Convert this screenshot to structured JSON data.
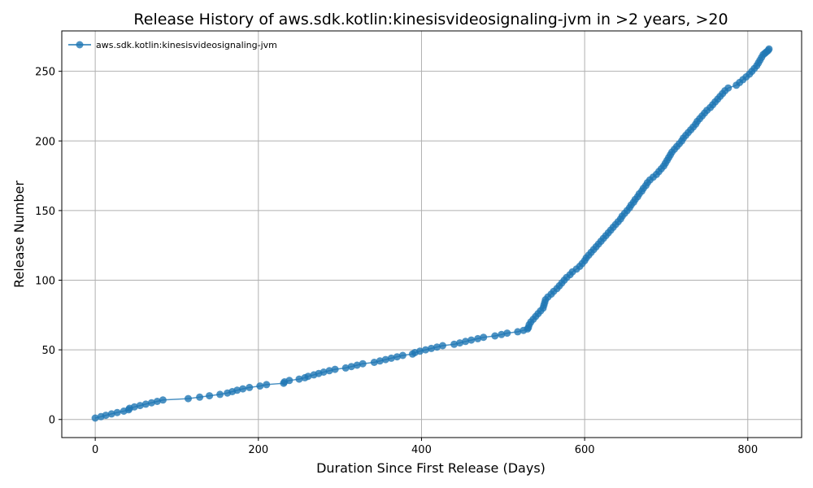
{
  "chart_data": {
    "type": "line",
    "title": "Release History of aws.sdk.kotlin:kinesisvideosignaling-jvm in >2 years, >20",
    "xlabel": "Duration Since First Release (Days)",
    "ylabel": "Release Number",
    "xlim": [
      -41,
      866
    ],
    "ylim": [
      -13,
      279
    ],
    "xticks": [
      0,
      200,
      400,
      600,
      800
    ],
    "yticks": [
      0,
      50,
      100,
      150,
      200,
      250
    ],
    "grid": true,
    "legend_position": "top-left",
    "series": [
      {
        "name": "aws.sdk.kotlin:kinesisvideosignaling-jvm",
        "color": "#1f77b4",
        "marker": "circle",
        "points": [
          [
            0,
            1
          ],
          [
            7,
            2
          ],
          [
            13,
            3
          ],
          [
            20,
            4
          ],
          [
            27,
            5
          ],
          [
            35,
            6
          ],
          [
            41,
            7
          ],
          [
            42,
            8
          ],
          [
            48,
            9
          ],
          [
            55,
            10
          ],
          [
            62,
            11
          ],
          [
            69,
            12
          ],
          [
            76,
            13
          ],
          [
            83,
            14
          ],
          [
            114,
            15
          ],
          [
            128,
            16
          ],
          [
            140,
            17
          ],
          [
            153,
            18
          ],
          [
            162,
            19
          ],
          [
            168,
            20
          ],
          [
            174,
            21
          ],
          [
            181,
            22
          ],
          [
            189,
            23
          ],
          [
            202,
            24
          ],
          [
            210,
            25
          ],
          [
            231,
            26
          ],
          [
            232,
            27
          ],
          [
            238,
            28
          ],
          [
            250,
            29
          ],
          [
            257,
            30
          ],
          [
            261,
            31
          ],
          [
            268,
            32
          ],
          [
            274,
            33
          ],
          [
            280,
            34
          ],
          [
            287,
            35
          ],
          [
            294,
            36
          ],
          [
            307,
            37
          ],
          [
            314,
            38
          ],
          [
            321,
            39
          ],
          [
            328,
            40
          ],
          [
            342,
            41
          ],
          [
            349,
            42
          ],
          [
            356,
            43
          ],
          [
            363,
            44
          ],
          [
            370,
            45
          ],
          [
            377,
            46
          ],
          [
            389,
            47
          ],
          [
            392,
            48
          ],
          [
            398,
            49
          ],
          [
            405,
            50
          ],
          [
            412,
            51
          ],
          [
            419,
            52
          ],
          [
            426,
            53
          ],
          [
            440,
            54
          ],
          [
            447,
            55
          ],
          [
            454,
            56
          ],
          [
            461,
            57
          ],
          [
            469,
            58
          ],
          [
            476,
            59
          ],
          [
            490,
            60
          ],
          [
            498,
            61
          ],
          [
            505,
            62
          ],
          [
            518,
            63
          ],
          [
            525,
            64
          ],
          [
            530,
            65
          ],
          [
            531,
            66
          ],
          [
            532,
            68
          ],
          [
            534,
            70
          ],
          [
            537,
            72
          ],
          [
            540,
            74
          ],
          [
            543,
            76
          ],
          [
            546,
            78
          ],
          [
            549,
            80
          ],
          [
            550,
            82
          ],
          [
            551,
            84
          ],
          [
            552,
            86
          ],
          [
            555,
            88
          ],
          [
            559,
            90
          ],
          [
            562,
            92
          ],
          [
            566,
            94
          ],
          [
            569,
            96
          ],
          [
            572,
            98
          ],
          [
            575,
            100
          ],
          [
            578,
            102
          ],
          [
            582,
            104
          ],
          [
            585,
            106
          ],
          [
            590,
            108
          ],
          [
            594,
            110
          ],
          [
            597,
            112
          ],
          [
            600,
            114
          ],
          [
            602,
            116
          ],
          [
            605,
            118
          ],
          [
            608,
            120
          ],
          [
            611,
            122
          ],
          [
            614,
            124
          ],
          [
            617,
            126
          ],
          [
            620,
            128
          ],
          [
            623,
            130
          ],
          [
            626,
            132
          ],
          [
            629,
            134
          ],
          [
            632,
            136
          ],
          [
            635,
            138
          ],
          [
            638,
            140
          ],
          [
            641,
            142
          ],
          [
            644,
            144
          ],
          [
            646,
            146
          ],
          [
            649,
            148
          ],
          [
            652,
            150
          ],
          [
            655,
            152
          ],
          [
            657,
            154
          ],
          [
            660,
            156
          ],
          [
            662,
            158
          ],
          [
            665,
            160
          ],
          [
            667,
            162
          ],
          [
            670,
            164
          ],
          [
            672,
            166
          ],
          [
            675,
            168
          ],
          [
            677,
            170
          ],
          [
            680,
            172
          ],
          [
            684,
            174
          ],
          [
            688,
            176
          ],
          [
            691,
            178
          ],
          [
            694,
            180
          ],
          [
            697,
            182
          ],
          [
            699,
            184
          ],
          [
            701,
            186
          ],
          [
            703,
            188
          ],
          [
            705,
            190
          ],
          [
            707,
            192
          ],
          [
            710,
            194
          ],
          [
            713,
            196
          ],
          [
            716,
            198
          ],
          [
            719,
            200
          ],
          [
            721,
            202
          ],
          [
            724,
            204
          ],
          [
            727,
            206
          ],
          [
            730,
            208
          ],
          [
            733,
            210
          ],
          [
            736,
            212
          ],
          [
            738,
            214
          ],
          [
            741,
            216
          ],
          [
            744,
            218
          ],
          [
            747,
            220
          ],
          [
            750,
            222
          ],
          [
            754,
            224
          ],
          [
            757,
            226
          ],
          [
            760,
            228
          ],
          [
            763,
            230
          ],
          [
            766,
            232
          ],
          [
            769,
            234
          ],
          [
            772,
            236
          ],
          [
            776,
            238
          ],
          [
            786,
            240
          ],
          [
            790,
            242
          ],
          [
            794,
            244
          ],
          [
            798,
            246
          ],
          [
            802,
            248
          ],
          [
            805,
            250
          ],
          [
            808,
            252
          ],
          [
            811,
            254
          ],
          [
            813,
            256
          ],
          [
            815,
            258
          ],
          [
            817,
            260
          ],
          [
            819,
            262
          ],
          [
            821,
            263
          ],
          [
            823,
            264
          ],
          [
            825,
            265
          ],
          [
            826,
            266
          ]
        ]
      }
    ]
  }
}
